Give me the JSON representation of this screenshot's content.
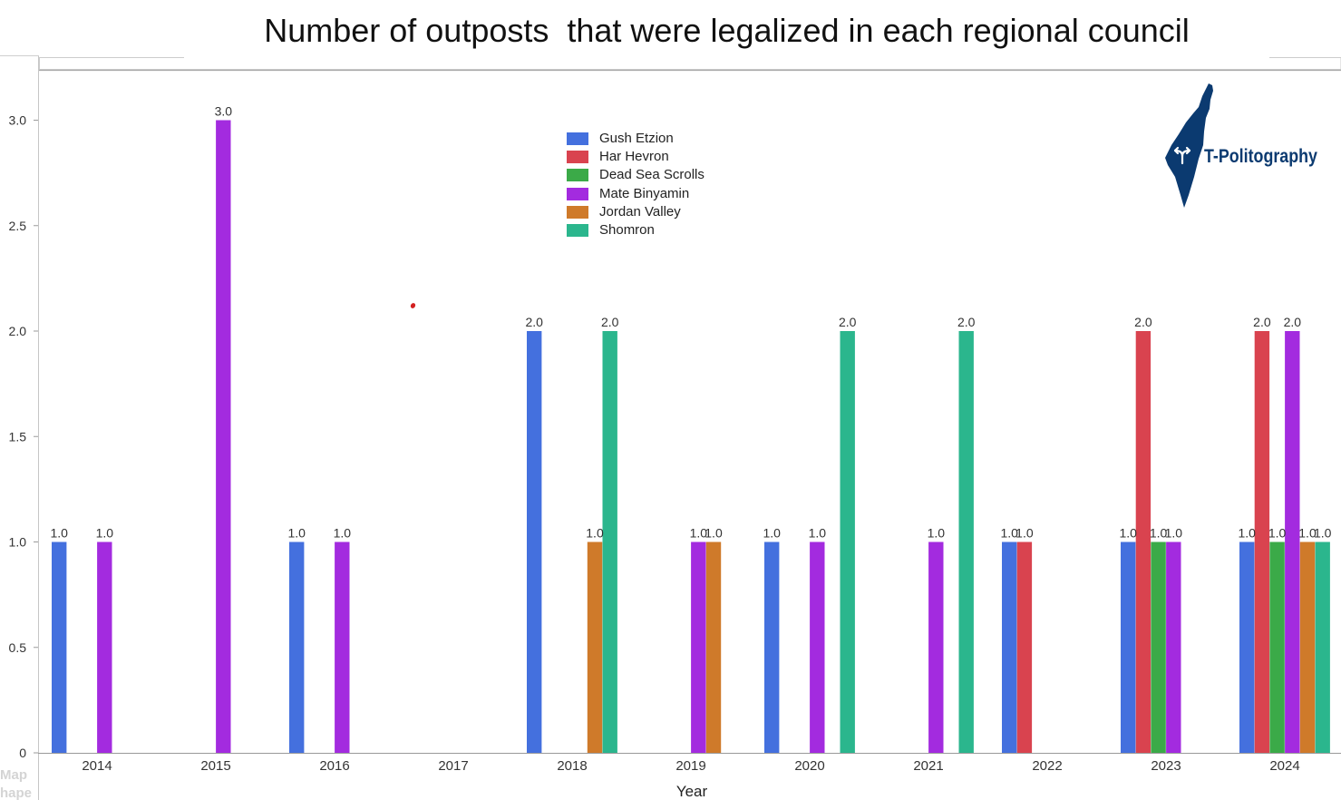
{
  "chart_data": {
    "type": "bar",
    "title": "Number of outposts  that were legalized in each regional council",
    "xlabel": "Year",
    "categories": [
      "2014",
      "2015",
      "2016",
      "2017",
      "2018",
      "2019",
      "2020",
      "2021",
      "2022",
      "2023",
      "2024"
    ],
    "ylim": [
      0,
      3.2
    ],
    "ytick_labels": [
      "0",
      "0.5",
      "1.0",
      "1.5",
      "2.0",
      "2.5",
      "3.0"
    ],
    "grid": false,
    "legend_position": "top-center",
    "series": [
      {
        "name": "Gush Etzion",
        "color": "#4470DE",
        "values": [
          1,
          null,
          1,
          null,
          2,
          null,
          1,
          null,
          1,
          1,
          1
        ]
      },
      {
        "name": "Har Hevron",
        "color": "#D9434F",
        "values": [
          null,
          null,
          null,
          null,
          null,
          null,
          null,
          null,
          1,
          2,
          2
        ]
      },
      {
        "name": "Dead Sea Scrolls",
        "color": "#3BAA48",
        "values": [
          null,
          null,
          null,
          null,
          null,
          null,
          null,
          null,
          null,
          1,
          1
        ]
      },
      {
        "name": "Mate Binyamin",
        "color": "#A32BDF",
        "values": [
          1,
          3,
          1,
          null,
          null,
          1,
          1,
          1,
          null,
          1,
          2
        ]
      },
      {
        "name": "Jordan Valley",
        "color": "#CF7A2A",
        "values": [
          null,
          null,
          null,
          null,
          1,
          1,
          null,
          null,
          null,
          null,
          1
        ]
      },
      {
        "name": "Shomron",
        "color": "#2BB68D",
        "values": [
          null,
          null,
          null,
          null,
          2,
          null,
          2,
          2,
          null,
          null,
          1
        ]
      }
    ]
  },
  "logo": {
    "text": "T-Politography",
    "icon": "israel-map-icon",
    "color": "#0B3A70"
  },
  "side_panel": {
    "map_label": "Map",
    "shape_label": "hape"
  }
}
